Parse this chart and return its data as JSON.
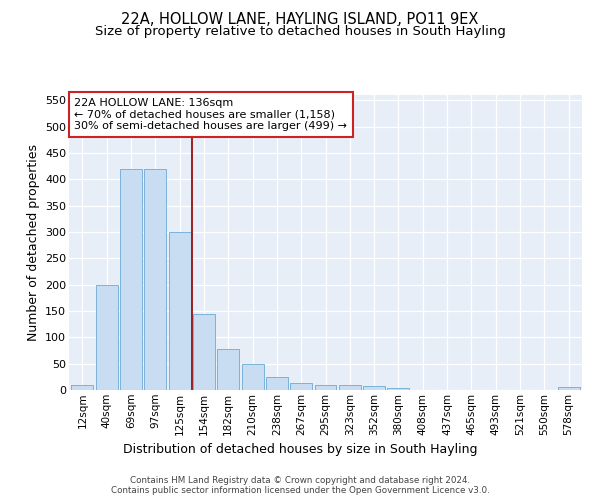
{
  "title": "22A, HOLLOW LANE, HAYLING ISLAND, PO11 9EX",
  "subtitle": "Size of property relative to detached houses in South Hayling",
  "xlabel": "Distribution of detached houses by size in South Hayling",
  "ylabel": "Number of detached properties",
  "categories": [
    "12sqm",
    "40sqm",
    "69sqm",
    "97sqm",
    "125sqm",
    "154sqm",
    "182sqm",
    "210sqm",
    "238sqm",
    "267sqm",
    "295sqm",
    "323sqm",
    "352sqm",
    "380sqm",
    "408sqm",
    "437sqm",
    "465sqm",
    "493sqm",
    "521sqm",
    "550sqm",
    "578sqm"
  ],
  "values": [
    10,
    200,
    420,
    420,
    300,
    145,
    78,
    50,
    25,
    14,
    10,
    10,
    8,
    4,
    0,
    0,
    0,
    0,
    0,
    0,
    5
  ],
  "bar_color": "#c9ddf2",
  "bar_edge_color": "#6aaad4",
  "vline_x": 4.5,
  "vline_color": "#9b2020",
  "annotation_text": "22A HOLLOW LANE: 136sqm\n← 70% of detached houses are smaller (1,158)\n30% of semi-detached houses are larger (499) →",
  "annotation_box_color": "#ffffff",
  "annotation_box_edge": "#cc2222",
  "ylim": [
    0,
    560
  ],
  "yticks": [
    0,
    50,
    100,
    150,
    200,
    250,
    300,
    350,
    400,
    450,
    500,
    550
  ],
  "bg_color": "#e8eef8",
  "footer": "Contains HM Land Registry data © Crown copyright and database right 2024.\nContains public sector information licensed under the Open Government Licence v3.0.",
  "title_fontsize": 10.5,
  "subtitle_fontsize": 9.5,
  "xlabel_fontsize": 9,
  "ylabel_fontsize": 9,
  "annot_fontsize": 8,
  "tick_fontsize": 7.5
}
